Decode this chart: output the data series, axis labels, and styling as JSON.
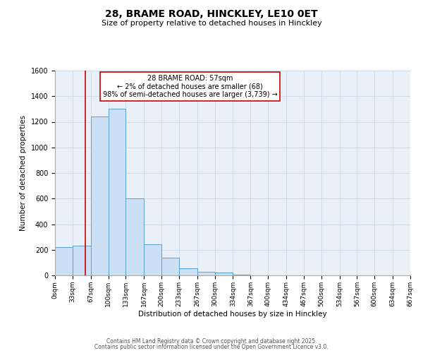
{
  "title": "28, BRAME ROAD, HINCKLEY, LE10 0ET",
  "subtitle": "Size of property relative to detached houses in Hinckley",
  "xlabel": "Distribution of detached houses by size in Hinckley",
  "ylabel": "Number of detached properties",
  "bin_edges": [
    0,
    33,
    67,
    100,
    133,
    167,
    200,
    233,
    267,
    300,
    334,
    367,
    400,
    434,
    467,
    500,
    534,
    567,
    600,
    634,
    667
  ],
  "bar_heights": [
    220,
    230,
    1240,
    1300,
    600,
    245,
    140,
    55,
    25,
    20,
    5,
    0,
    0,
    0,
    0,
    0,
    0,
    0,
    0,
    0
  ],
  "bar_facecolor": "#cce0f5",
  "bar_edgecolor": "#5a9fd4",
  "vline_x": 57,
  "vline_color": "#cc0000",
  "annotation_title": "28 BRAME ROAD: 57sqm",
  "annotation_line1": "← 2% of detached houses are smaller (68)",
  "annotation_line2": "98% of semi-detached houses are larger (3,739) →",
  "annotation_box_edgecolor": "#cc0000",
  "annotation_box_facecolor": "white",
  "ylim": [
    0,
    1600
  ],
  "yticks": [
    0,
    200,
    400,
    600,
    800,
    1000,
    1200,
    1400,
    1600
  ],
  "xtick_labels": [
    "0sqm",
    "33sqm",
    "67sqm",
    "100sqm",
    "133sqm",
    "167sqm",
    "200sqm",
    "233sqm",
    "267sqm",
    "300sqm",
    "334sqm",
    "367sqm",
    "400sqm",
    "434sqm",
    "467sqm",
    "500sqm",
    "534sqm",
    "567sqm",
    "600sqm",
    "634sqm",
    "667sqm"
  ],
  "grid_color": "#ccd8e8",
  "bg_color": "#eaf0f8",
  "footer1": "Contains HM Land Registry data © Crown copyright and database right 2025.",
  "footer2": "Contains public sector information licensed under the Open Government Licence v3.0."
}
